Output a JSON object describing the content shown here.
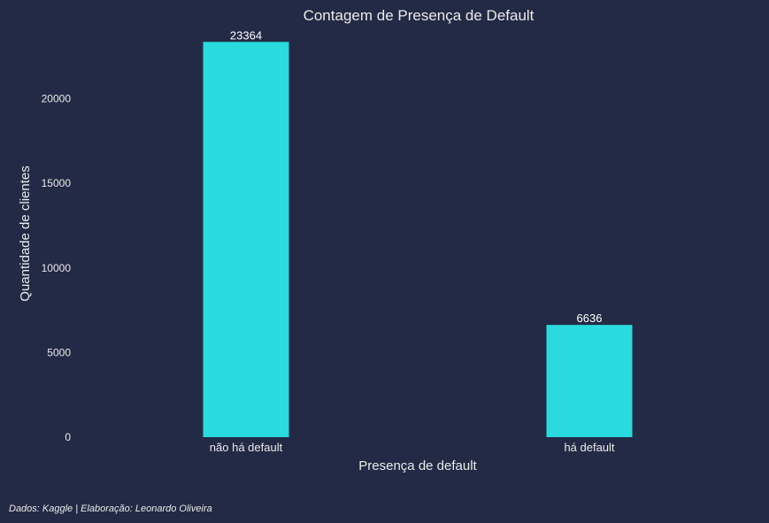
{
  "chart_data": {
    "type": "bar",
    "title": "Contagem de Presença de Default",
    "xlabel": "Presença de default",
    "ylabel": "Quantidade de clientes",
    "categories": [
      "não há default",
      "há default"
    ],
    "values": [
      23364,
      6636
    ],
    "data_labels": [
      "23364",
      "6636"
    ],
    "yticks": [
      0,
      5000,
      10000,
      15000,
      20000
    ],
    "ytick_labels": [
      "0",
      "5000",
      "10000",
      "15000",
      "20000"
    ],
    "ylim": [
      0,
      24532
    ],
    "grid": false,
    "legend": "none"
  },
  "footer": {
    "caption": "Dados: Kaggle | Elaboração: Leonardo Oliveira"
  },
  "colors": {
    "background": "#232a45",
    "bar": "#29dadf",
    "text": "#eaeaea"
  }
}
